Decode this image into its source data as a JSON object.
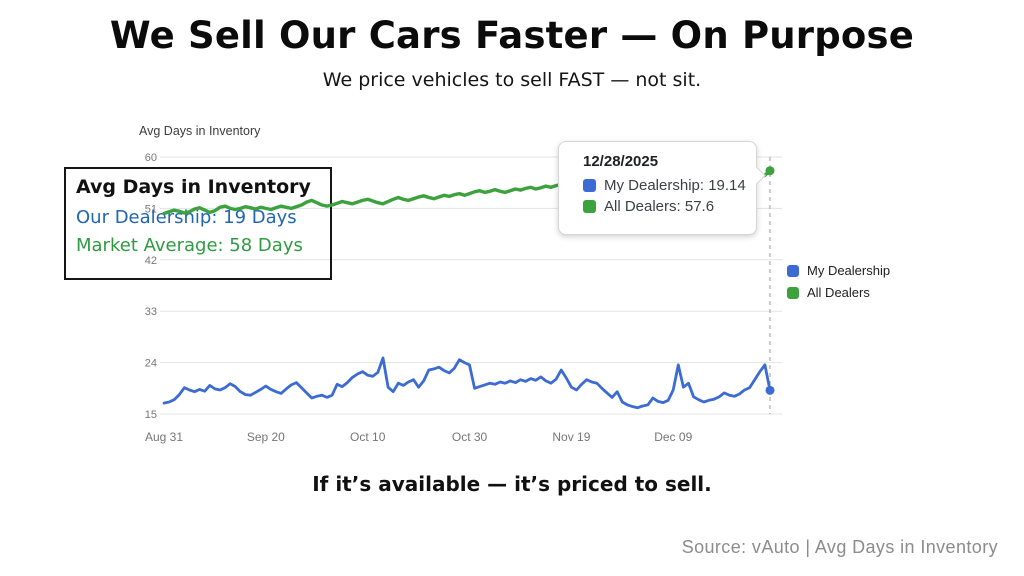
{
  "page": {
    "title": "We Sell Our Cars Faster — On Purpose",
    "subtitle": "We price vehicles to sell FAST — not sit.",
    "tagline": "If it’s available — it’s priced to sell.",
    "source": "Source: vAuto | Avg Days in Inventory"
  },
  "callout": {
    "title": "Avg Days in Inventory",
    "our_dealership": "Our Dealership: 19 Days",
    "market_average": "Market Average: 58 Days",
    "text_blue": "#2166AE",
    "text_green": "#2E9B40"
  },
  "tooltip": {
    "date": "12/28/2025",
    "rows": [
      {
        "text": "My Dealership: 19.14",
        "color": "#3B6BD3"
      },
      {
        "text": "All Dealers: 57.6",
        "color": "#3CA23E"
      }
    ]
  },
  "legend": [
    {
      "label": "My Dealership",
      "color": "#3B6BD3"
    },
    {
      "label": "All Dealers",
      "color": "#3CA23E"
    }
  ],
  "colors": {
    "grid": "#E3E3E3",
    "tick": "#767676",
    "crosshair": "#B3B3B3",
    "dealership_blue": "#3B6BD3",
    "dealers_green": "#3CA23E"
  },
  "chart_data": {
    "type": "line",
    "y_axis_title": "Avg Days in Inventory",
    "ylim": [
      15,
      60
    ],
    "y_ticks": [
      15,
      24,
      33,
      42,
      51,
      60
    ],
    "x_tick_labels": [
      "Aug 31",
      "Sep 20",
      "Oct 10",
      "Oct 30",
      "Nov 19",
      "Dec 09"
    ],
    "x_tick_days": [
      0,
      20,
      40,
      60,
      80,
      100
    ],
    "x_start_date": "Aug 31",
    "x_end_date": "12/28/2025",
    "grid": true,
    "legend_position": "right",
    "crosshair_day": 119,
    "series": [
      {
        "name": "My Dealership",
        "color": "#3B6BD3",
        "end_value": 19.14,
        "values": [
          16.9,
          17.1,
          17.5,
          18.4,
          19.6,
          19.2,
          18.9,
          19.3,
          19.0,
          20.0,
          19.4,
          19.2,
          19.6,
          20.3,
          19.8,
          18.9,
          18.4,
          18.3,
          18.8,
          19.3,
          19.9,
          19.3,
          18.9,
          18.6,
          19.4,
          20.1,
          20.5,
          19.6,
          18.7,
          17.8,
          18.1,
          18.3,
          17.9,
          18.3,
          20.2,
          19.8,
          20.5,
          21.4,
          22.0,
          22.4,
          21.8,
          21.6,
          22.3,
          24.8,
          19.7,
          18.9,
          20.4,
          20.0,
          20.6,
          21.0,
          19.7,
          20.8,
          22.7,
          22.9,
          23.2,
          22.6,
          22.2,
          23.0,
          24.5,
          24.0,
          23.6,
          19.5,
          19.8,
          20.1,
          20.4,
          20.2,
          20.6,
          20.4,
          20.8,
          20.5,
          21.0,
          20.7,
          21.2,
          20.9,
          21.5,
          20.8,
          20.4,
          21.1,
          22.7,
          21.3,
          19.7,
          19.2,
          20.2,
          21.0,
          20.6,
          20.4,
          19.5,
          18.7,
          17.9,
          18.9,
          17.1,
          16.6,
          16.3,
          16.1,
          16.4,
          16.6,
          17.8,
          17.2,
          17.0,
          17.4,
          19.2,
          23.6,
          19.7,
          20.4,
          18.0,
          17.5,
          17.1,
          17.4,
          17.6,
          18.0,
          18.7,
          18.3,
          18.1,
          18.5,
          19.2,
          19.6,
          21.0,
          22.4,
          23.6,
          19.14
        ]
      },
      {
        "name": "All Dealers",
        "color": "#3CA23E",
        "end_value": 57.6,
        "values": [
          50.1,
          50.4,
          50.7,
          50.5,
          50.2,
          50.4,
          50.9,
          51.1,
          50.7,
          50.3,
          50.6,
          51.2,
          51.4,
          51.0,
          50.8,
          51.0,
          51.3,
          51.1,
          50.9,
          51.2,
          51.0,
          50.8,
          51.1,
          51.4,
          51.2,
          51.0,
          51.3,
          51.6,
          52.1,
          52.4,
          52.0,
          51.6,
          51.4,
          51.6,
          51.9,
          52.2,
          52.0,
          51.8,
          52.1,
          52.4,
          52.6,
          52.3,
          52.0,
          51.8,
          52.2,
          52.6,
          52.9,
          52.6,
          52.4,
          52.7,
          53.0,
          53.2,
          52.9,
          52.7,
          53.0,
          53.3,
          53.1,
          53.4,
          53.6,
          53.3,
          53.6,
          53.9,
          54.1,
          53.8,
          54.0,
          54.3,
          54.0,
          53.8,
          54.1,
          54.4,
          54.2,
          54.5,
          54.7,
          54.4,
          54.6,
          54.9,
          54.7,
          55.0,
          55.2,
          54.9,
          55.1,
          55.3,
          55.1,
          55.4,
          55.6,
          55.3,
          55.5,
          55.7,
          55.5,
          55.8,
          56.0,
          55.8,
          56.0,
          56.2,
          56.0,
          56.2,
          56.4,
          56.2,
          56.0,
          56.2,
          56.3,
          56.1,
          56.3,
          56.5,
          56.3,
          56.5,
          56.4,
          56.2,
          56.4,
          56.5,
          56.3,
          56.5,
          56.6,
          56.4,
          56.5,
          56.4,
          56.3,
          56.5,
          56.8,
          57.6
        ]
      }
    ]
  }
}
